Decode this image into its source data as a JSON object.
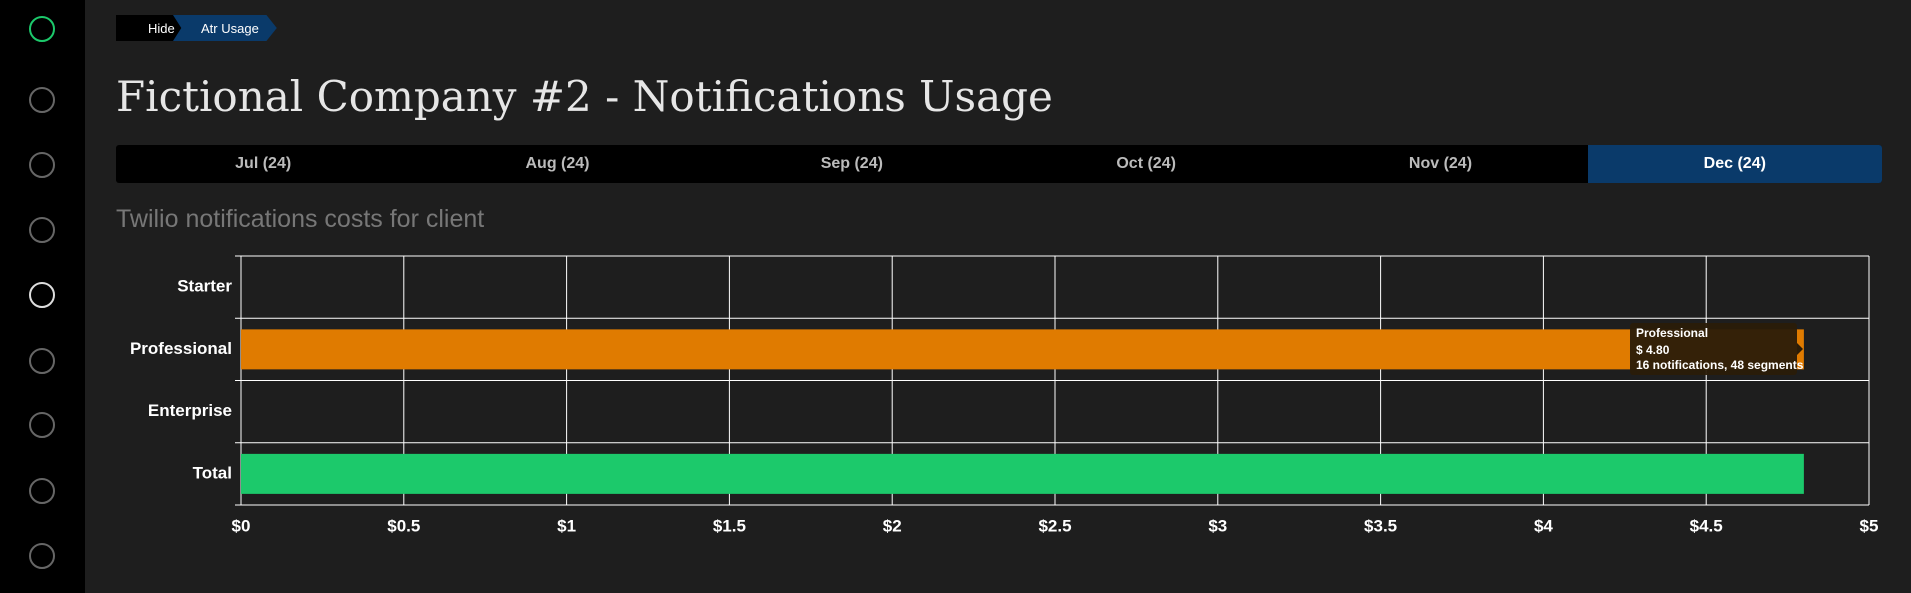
{
  "breadcrumb": {
    "hide": "Hide",
    "current": "Atr Usage"
  },
  "title": "Fictional Company #2 - Notifications Usage",
  "tabs": [
    {
      "label": "Jul (24)",
      "active": false
    },
    {
      "label": "Aug (24)",
      "active": false
    },
    {
      "label": "Sep (24)",
      "active": false
    },
    {
      "label": "Oct (24)",
      "active": false
    },
    {
      "label": "Nov (24)",
      "active": false
    },
    {
      "label": "Dec (24)",
      "active": true
    }
  ],
  "subtitle": "Twilio notifications costs for client",
  "chart_data": {
    "type": "hbar",
    "categories": [
      "Starter",
      "Professional",
      "Enterprise",
      "Total"
    ],
    "values": [
      0,
      4.8,
      0,
      4.8
    ],
    "colors": [
      "#e07b00",
      "#e07b00",
      "#e07b00",
      "#1cc96b"
    ],
    "xlim": [
      0,
      5
    ],
    "xticks": [
      {
        "value": 0,
        "label": "$0"
      },
      {
        "value": 0.5,
        "label": "$0.5"
      },
      {
        "value": 1,
        "label": "$1"
      },
      {
        "value": 1.5,
        "label": "$1.5"
      },
      {
        "value": 2,
        "label": "$2"
      },
      {
        "value": 2.5,
        "label": "$2.5"
      },
      {
        "value": 3,
        "label": "$3"
      },
      {
        "value": 3.5,
        "label": "$3.5"
      },
      {
        "value": 4,
        "label": "$4"
      },
      {
        "value": 4.5,
        "label": "$4.5"
      },
      {
        "value": 5,
        "label": "$5"
      }
    ],
    "grid": true,
    "tooltip": {
      "title": "Professional",
      "amount": "$ 4.80",
      "detail": "16 notifications, 48 segments"
    }
  }
}
